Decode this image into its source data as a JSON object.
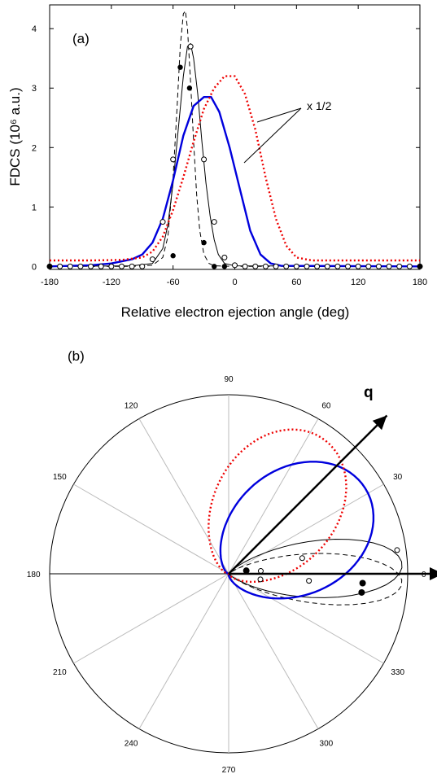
{
  "chart_data": [
    {
      "type": "line",
      "panel_label": "(a)",
      "xlabel": "Relative electron ejection angle (deg)",
      "ylabel": "FDCS (10⁶ a.u.)",
      "xlim": [
        -180,
        180
      ],
      "ylim": [
        -0.05,
        4.4
      ],
      "x_ticks": [
        -180,
        -120,
        -60,
        0,
        60,
        120,
        180
      ],
      "y_ticks": [
        0,
        1,
        2,
        3,
        4
      ],
      "annotation": "x 1/2",
      "series": [
        {
          "style": "dashed",
          "color": "#000000",
          "points": [
            [
              -180,
              0
            ],
            [
              -100,
              0
            ],
            [
              -80,
              0.02
            ],
            [
              -70,
              0.15
            ],
            [
              -65,
              0.5
            ],
            [
              -60,
              1.5
            ],
            [
              -56,
              2.7
            ],
            [
              -53,
              3.7
            ],
            [
              -50,
              4.25
            ],
            [
              -48,
              4.3
            ],
            [
              -46,
              4.0
            ],
            [
              -43,
              3.1
            ],
            [
              -40,
              2.1
            ],
            [
              -37,
              1.2
            ],
            [
              -34,
              0.6
            ],
            [
              -30,
              0.2
            ],
            [
              -25,
              0.05
            ],
            [
              -20,
              0.01
            ],
            [
              0,
              0
            ],
            [
              180,
              0
            ]
          ]
        },
        {
          "style": "solid",
          "color": "#000000",
          "points": [
            [
              -180,
              0
            ],
            [
              -100,
              0.01
            ],
            [
              -80,
              0.05
            ],
            [
              -70,
              0.3
            ],
            [
              -65,
              0.7
            ],
            [
              -60,
              1.4
            ],
            [
              -55,
              2.3
            ],
            [
              -50,
              3.2
            ],
            [
              -46,
              3.7
            ],
            [
              -43,
              3.75
            ],
            [
              -40,
              3.5
            ],
            [
              -36,
              2.9
            ],
            [
              -32,
              2.1
            ],
            [
              -28,
              1.4
            ],
            [
              -24,
              0.85
            ],
            [
              -20,
              0.45
            ],
            [
              -16,
              0.2
            ],
            [
              -10,
              0.05
            ],
            [
              0,
              0.01
            ],
            [
              180,
              0
            ]
          ]
        },
        {
          "style": "solid",
          "color": "#0000dd",
          "points": [
            [
              -180,
              0
            ],
            [
              -140,
              0.02
            ],
            [
              -120,
              0.05
            ],
            [
              -100,
              0.12
            ],
            [
              -90,
              0.2
            ],
            [
              -80,
              0.4
            ],
            [
              -70,
              0.8
            ],
            [
              -60,
              1.45
            ],
            [
              -50,
              2.2
            ],
            [
              -40,
              2.7
            ],
            [
              -30,
              2.85
            ],
            [
              -23,
              2.85
            ],
            [
              -15,
              2.6
            ],
            [
              -5,
              2.0
            ],
            [
              5,
              1.3
            ],
            [
              15,
              0.6
            ],
            [
              25,
              0.2
            ],
            [
              35,
              0.05
            ],
            [
              45,
              0.01
            ],
            [
              180,
              0
            ]
          ]
        },
        {
          "style": "dotted",
          "color": "#ee0000",
          "points": [
            [
              -180,
              0.1
            ],
            [
              -140,
              0.1
            ],
            [
              -110,
              0.11
            ],
            [
              -90,
              0.15
            ],
            [
              -80,
              0.25
            ],
            [
              -70,
              0.5
            ],
            [
              -60,
              0.95
            ],
            [
              -50,
              1.5
            ],
            [
              -40,
              2.1
            ],
            [
              -30,
              2.65
            ],
            [
              -20,
              3.0
            ],
            [
              -10,
              3.2
            ],
            [
              0,
              3.2
            ],
            [
              10,
              2.9
            ],
            [
              20,
              2.3
            ],
            [
              30,
              1.5
            ],
            [
              40,
              0.8
            ],
            [
              50,
              0.35
            ],
            [
              60,
              0.15
            ],
            [
              75,
              0.1
            ],
            [
              180,
              0.1
            ]
          ]
        }
      ],
      "markers": {
        "filled": [
          [
            -180,
            0
          ],
          [
            -60,
            0.18
          ],
          [
            -53,
            3.35
          ],
          [
            -44,
            3.0
          ],
          [
            -30,
            0.4
          ],
          [
            -20,
            0
          ],
          [
            -10,
            0
          ],
          [
            180,
            0
          ]
        ],
        "open": [
          [
            -180,
            0
          ],
          [
            -170,
            0
          ],
          [
            -160,
            0
          ],
          [
            -150,
            0
          ],
          [
            -140,
            0
          ],
          [
            -130,
            0
          ],
          [
            -120,
            0
          ],
          [
            -110,
            0
          ],
          [
            -100,
            0
          ],
          [
            -90,
            0
          ],
          [
            -80,
            0.12
          ],
          [
            -70,
            0.75
          ],
          [
            -60,
            1.8
          ],
          [
            -43,
            3.7
          ],
          [
            -30,
            1.8
          ],
          [
            -20,
            0.75
          ],
          [
            -10,
            0.15
          ],
          [
            0,
            0.02
          ],
          [
            10,
            0
          ],
          [
            20,
            0
          ],
          [
            30,
            0
          ],
          [
            40,
            0
          ],
          [
            50,
            0
          ],
          [
            60,
            0
          ],
          [
            70,
            0
          ],
          [
            80,
            0
          ],
          [
            90,
            0
          ],
          [
            100,
            0
          ],
          [
            110,
            0
          ],
          [
            120,
            0
          ],
          [
            130,
            0
          ],
          [
            140,
            0
          ],
          [
            150,
            0
          ],
          [
            160,
            0
          ],
          [
            170,
            0
          ],
          [
            180,
            0
          ]
        ]
      }
    },
    {
      "type": "polar",
      "panel_label": "(b)",
      "angle_labels": [
        "0",
        "30",
        "60",
        "90",
        "120",
        "150",
        "180",
        "210",
        "240",
        "270",
        "300",
        "330"
      ],
      "vector_label": "q",
      "vector_angle_deg": 45,
      "series": [
        {
          "style": "dashed",
          "color": "#000000",
          "peak_angle_deg": -3,
          "peak_r": 0.97,
          "width": 14
        },
        {
          "style": "solid",
          "color": "#000000",
          "peak_angle_deg": 3,
          "peak_r": 0.97,
          "width": 16
        },
        {
          "style": "solid",
          "color": "#0000dd",
          "peak_angle_deg": 32,
          "peak_r": 0.9,
          "width": 40
        },
        {
          "style": "dotted",
          "color": "#ee0000",
          "peak_angle_deg": 55,
          "peak_r": 0.92,
          "width": 38
        }
      ],
      "markers": {
        "filled": [
          [
            -4,
            0.75
          ],
          [
            -8,
            0.75
          ],
          [
            10,
            0.1
          ]
        ],
        "open": [
          [
            8,
            0.95
          ],
          [
            12,
            0.42
          ],
          [
            5,
            0.18
          ],
          [
            -10,
            0.18
          ],
          [
            -5,
            0.45
          ]
        ]
      }
    }
  ]
}
